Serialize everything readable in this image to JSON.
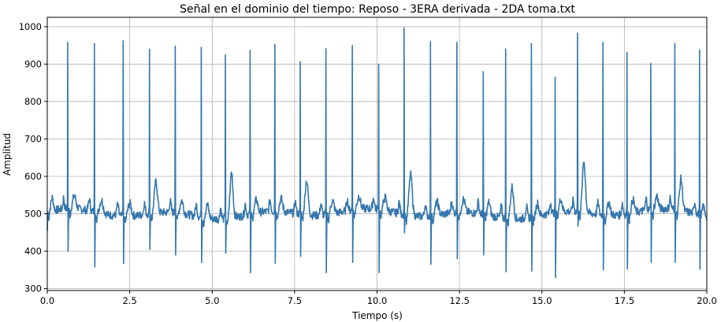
{
  "chart_data": {
    "type": "line",
    "title": "Señal en el dominio del tiempo: Reposo - 3ERA derivada - 2DA toma.txt",
    "xlabel": "Tiempo (s)",
    "ylabel": "Amplitud",
    "xlim": [
      0.0,
      20.0
    ],
    "ylim": [
      295,
      1025
    ],
    "xticks": [
      0.0,
      2.5,
      5.0,
      7.5,
      10.0,
      12.5,
      15.0,
      17.5,
      20.0
    ],
    "xtick_labels": [
      "0.0",
      "2.5",
      "5.0",
      "7.5",
      "10.0",
      "12.5",
      "15.0",
      "17.5",
      "20.0"
    ],
    "yticks": [
      300,
      400,
      500,
      600,
      700,
      800,
      900,
      1000
    ],
    "ytick_labels": [
      "300",
      "400",
      "500",
      "600",
      "700",
      "800",
      "900",
      "1000"
    ],
    "grid": true,
    "line_color": "#3476ad",
    "series": [
      {
        "beats": [
          {
            "t": 0.62,
            "peak": 958,
            "trough": 400
          },
          {
            "t": 1.43,
            "peak": 955,
            "trough": 358
          },
          {
            "t": 2.3,
            "peak": 962,
            "trough": 367
          },
          {
            "t": 3.1,
            "peak": 940,
            "trough": 405
          },
          {
            "t": 3.88,
            "peak": 948,
            "trough": 390
          },
          {
            "t": 4.67,
            "peak": 945,
            "trough": 370
          },
          {
            "t": 5.4,
            "peak": 925,
            "trough": 395
          },
          {
            "t": 6.15,
            "peak": 937,
            "trough": 343
          },
          {
            "t": 6.9,
            "peak": 953,
            "trough": 368
          },
          {
            "t": 7.67,
            "peak": 906,
            "trough": 386
          },
          {
            "t": 8.45,
            "peak": 941,
            "trough": 343
          },
          {
            "t": 9.25,
            "peak": 950,
            "trough": 370
          },
          {
            "t": 10.05,
            "peak": 900,
            "trough": 343
          },
          {
            "t": 10.82,
            "peak": 997,
            "trough": 449
          },
          {
            "t": 11.62,
            "peak": 960,
            "trough": 365
          },
          {
            "t": 12.42,
            "peak": 958,
            "trough": 380
          },
          {
            "t": 13.22,
            "peak": 880,
            "trough": 390
          },
          {
            "t": 13.9,
            "peak": 940,
            "trough": 345
          },
          {
            "t": 14.68,
            "peak": 955,
            "trough": 347
          },
          {
            "t": 15.4,
            "peak": 865,
            "trough": 330
          },
          {
            "t": 16.08,
            "peak": 983,
            "trough": 467
          },
          {
            "t": 16.85,
            "peak": 958,
            "trough": 350
          },
          {
            "t": 17.58,
            "peak": 932,
            "trough": 352
          },
          {
            "t": 18.3,
            "peak": 902,
            "trough": 370
          },
          {
            "t": 19.03,
            "peak": 955,
            "trough": 370
          },
          {
            "t": 19.78,
            "peak": 938,
            "trough": 352
          }
        ],
        "twaves": [
          {
            "t": 3.1,
            "amp": 585
          },
          {
            "t": 5.4,
            "amp": 622
          },
          {
            "t": 7.67,
            "amp": 592
          },
          {
            "t": 10.82,
            "amp": 610
          },
          {
            "t": 13.85,
            "amp": 585
          },
          {
            "t": 16.08,
            "amp": 637
          },
          {
            "t": 18.85,
            "amp": 585
          }
        ]
      }
    ]
  }
}
